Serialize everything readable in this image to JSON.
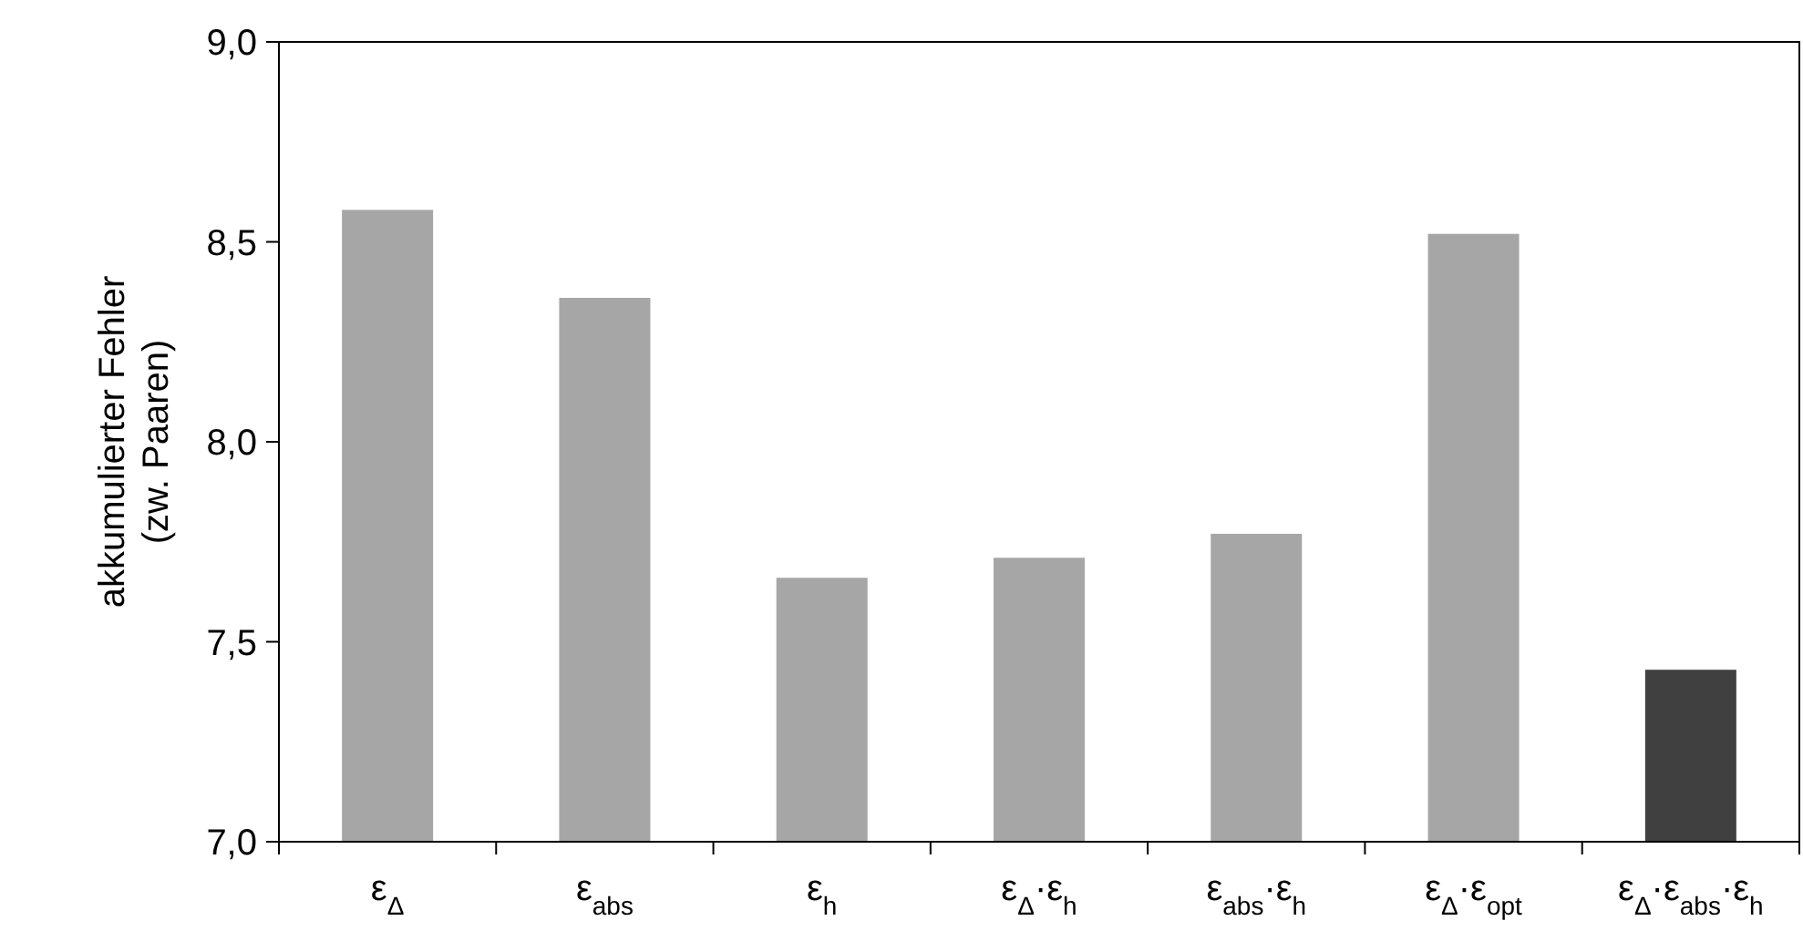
{
  "chart_data": {
    "type": "bar",
    "ylabel": "akkumulierter Fehler\n(zw. Paaren)",
    "categories": [
      "ε$_{Δ}$",
      "ε$_{abs}$",
      "ε$_{h}$",
      "ε$_{Δ}$·ε$_{h}$",
      "ε$_{abs}$·ε$_{h}$",
      "ε$_{Δ}$·ε$_{opt}$",
      "ε$_{Δ}$·ε$_{abs}$·ε$_{h}$"
    ],
    "values": [
      8.58,
      8.36,
      7.66,
      7.71,
      7.77,
      8.52,
      7.43
    ],
    "colors": [
      "#a6a6a6",
      "#a6a6a6",
      "#a6a6a6",
      "#a6a6a6",
      "#a6a6a6",
      "#a6a6a6",
      "#404040"
    ],
    "ylim": [
      7.0,
      9.0
    ],
    "yticks": [
      {
        "value": 7.0,
        "label": "7,0"
      },
      {
        "value": 7.5,
        "label": "7,5"
      },
      {
        "value": 8.0,
        "label": "8,0"
      },
      {
        "value": 8.5,
        "label": "8,5"
      },
      {
        "value": 9.0,
        "label": "9,0"
      }
    ],
    "grid": false
  }
}
